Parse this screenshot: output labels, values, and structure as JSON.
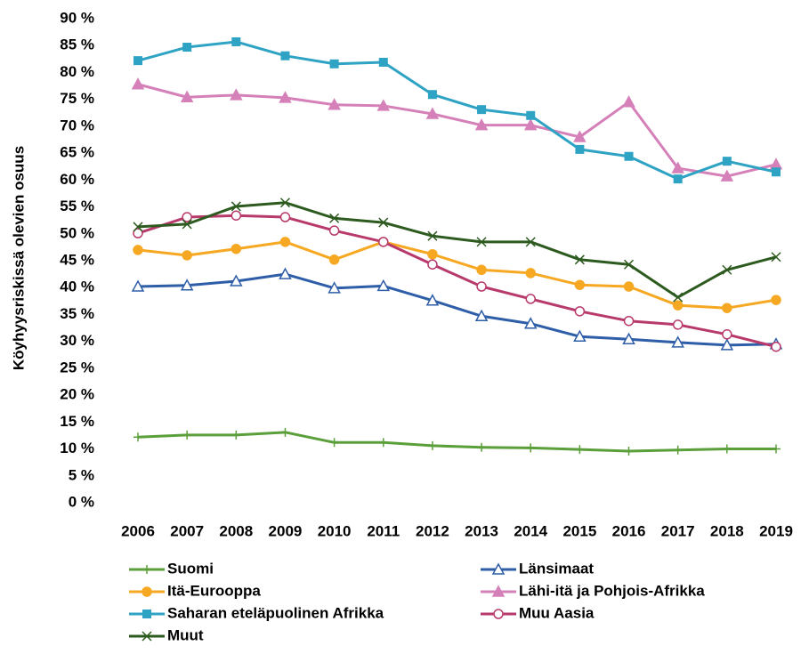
{
  "chart_data": {
    "type": "line",
    "y_label": "Köyhyysriskissä olevien osuus",
    "categories": [
      "2006",
      "2007",
      "2008",
      "2009",
      "2010",
      "2011",
      "2012",
      "2013",
      "2014",
      "2015",
      "2016",
      "2017",
      "2018",
      "2019"
    ],
    "ylim": [
      0,
      90
    ],
    "yticks": [
      {
        "value": 0,
        "label": "0 %"
      },
      {
        "value": 5,
        "label": "5 %"
      },
      {
        "value": 10,
        "label": "10 %"
      },
      {
        "value": 15,
        "label": "15 %"
      },
      {
        "value": 20,
        "label": "20 %"
      },
      {
        "value": 25,
        "label": "25 %"
      },
      {
        "value": 30,
        "label": "30 %"
      },
      {
        "value": 35,
        "label": "35 %"
      },
      {
        "value": 40,
        "label": "40 %"
      },
      {
        "value": 45,
        "label": "45 %"
      },
      {
        "value": 50,
        "label": "50 %"
      },
      {
        "value": 55,
        "label": "55 %"
      },
      {
        "value": 60,
        "label": "60 %"
      },
      {
        "value": 65,
        "label": "65 %"
      },
      {
        "value": 70,
        "label": "70 %"
      },
      {
        "value": 75,
        "label": "75 %"
      },
      {
        "value": 80,
        "label": "80 %"
      },
      {
        "value": 85,
        "label": "85 %"
      },
      {
        "value": 90,
        "label": "90 %"
      }
    ],
    "grid": false,
    "legend": "bottom",
    "series": [
      {
        "name": "Suomi",
        "color": "#5b9f3a",
        "marker": "plus",
        "values": [
          12.2,
          12.6,
          12.6,
          13.1,
          11.2,
          11.2,
          10.6,
          10.3,
          10.2,
          9.9,
          9.6,
          9.8,
          10.0,
          10.0
        ]
      },
      {
        "name": "Länsimaat",
        "color": "#2f5ea8",
        "marker": "triangle-open",
        "values": [
          40.2,
          40.4,
          41.2,
          42.5,
          39.9,
          40.3,
          37.6,
          34.7,
          33.3,
          30.9,
          30.4,
          29.8,
          29.3,
          29.5
        ]
      },
      {
        "name": "Itä-Eurooppa",
        "color": "#f7a823",
        "marker": "circle",
        "values": [
          47.0,
          46.0,
          47.2,
          48.5,
          45.2,
          48.5,
          46.2,
          43.3,
          42.7,
          40.5,
          40.2,
          36.7,
          36.2,
          37.7
        ]
      },
      {
        "name": "Lähi-itä ja Pohjois-Afrikka",
        "color": "#d580b8",
        "marker": "triangle",
        "values": [
          77.8,
          75.4,
          75.8,
          75.3,
          74.0,
          73.8,
          72.3,
          70.2,
          70.2,
          68.0,
          74.5,
          62.2,
          60.7,
          62.9
        ]
      },
      {
        "name": "Saharan eteläpuolinen Afrikka",
        "color": "#2fa3c4",
        "marker": "square",
        "values": [
          82.2,
          84.7,
          85.7,
          83.1,
          81.6,
          81.9,
          75.9,
          73.1,
          72.0,
          65.7,
          64.4,
          60.2,
          63.5,
          61.5
        ]
      },
      {
        "name": "Muu Aasia",
        "color": "#b8396b",
        "marker": "circle-open",
        "values": [
          50.1,
          53.1,
          53.4,
          53.1,
          50.6,
          48.5,
          44.3,
          40.2,
          37.9,
          35.6,
          33.8,
          33.1,
          31.3,
          29.0
        ]
      },
      {
        "name": "Muut",
        "color": "#2d5a1f",
        "marker": "x",
        "values": [
          51.3,
          51.8,
          55.1,
          55.8,
          52.9,
          52.1,
          49.6,
          48.5,
          48.5,
          45.2,
          44.3,
          38.2,
          43.3,
          45.7
        ]
      }
    ]
  }
}
